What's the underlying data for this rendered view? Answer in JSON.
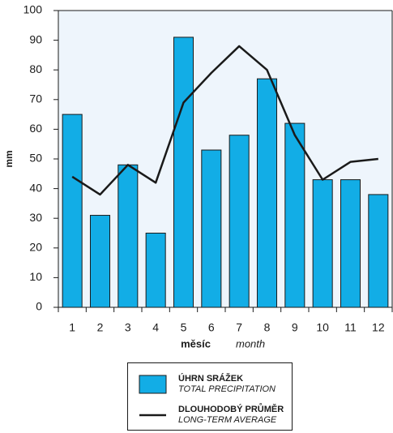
{
  "chart_data": {
    "type": "bar",
    "categories": [
      "1",
      "2",
      "3",
      "4",
      "5",
      "6",
      "7",
      "8",
      "9",
      "10",
      "11",
      "12"
    ],
    "series": [
      {
        "type": "bar",
        "name": "ÚHRN SRÁŽEK",
        "name_translation": "TOTAL PRECIPITATION",
        "color": "#12ade6",
        "values": [
          65,
          31,
          48,
          25,
          91,
          53,
          58,
          77,
          62,
          43,
          43,
          38
        ]
      },
      {
        "type": "line",
        "name": "DLOUHODOBÝ PRŮMĚR",
        "name_translation": "LONG-TERM AVERAGE",
        "color": "#1a1a1a",
        "values": [
          44,
          38,
          48,
          42,
          69,
          79,
          88,
          80,
          58,
          43,
          49,
          50
        ]
      }
    ],
    "ylabel": "mm",
    "xlabel": "měsíc",
    "xlabel_translation": "month",
    "ylim": [
      0,
      100
    ],
    "yticks": [
      0,
      10,
      20,
      30,
      40,
      50,
      60,
      70,
      80,
      90,
      100
    ],
    "grid": false,
    "legend": "bottom"
  }
}
